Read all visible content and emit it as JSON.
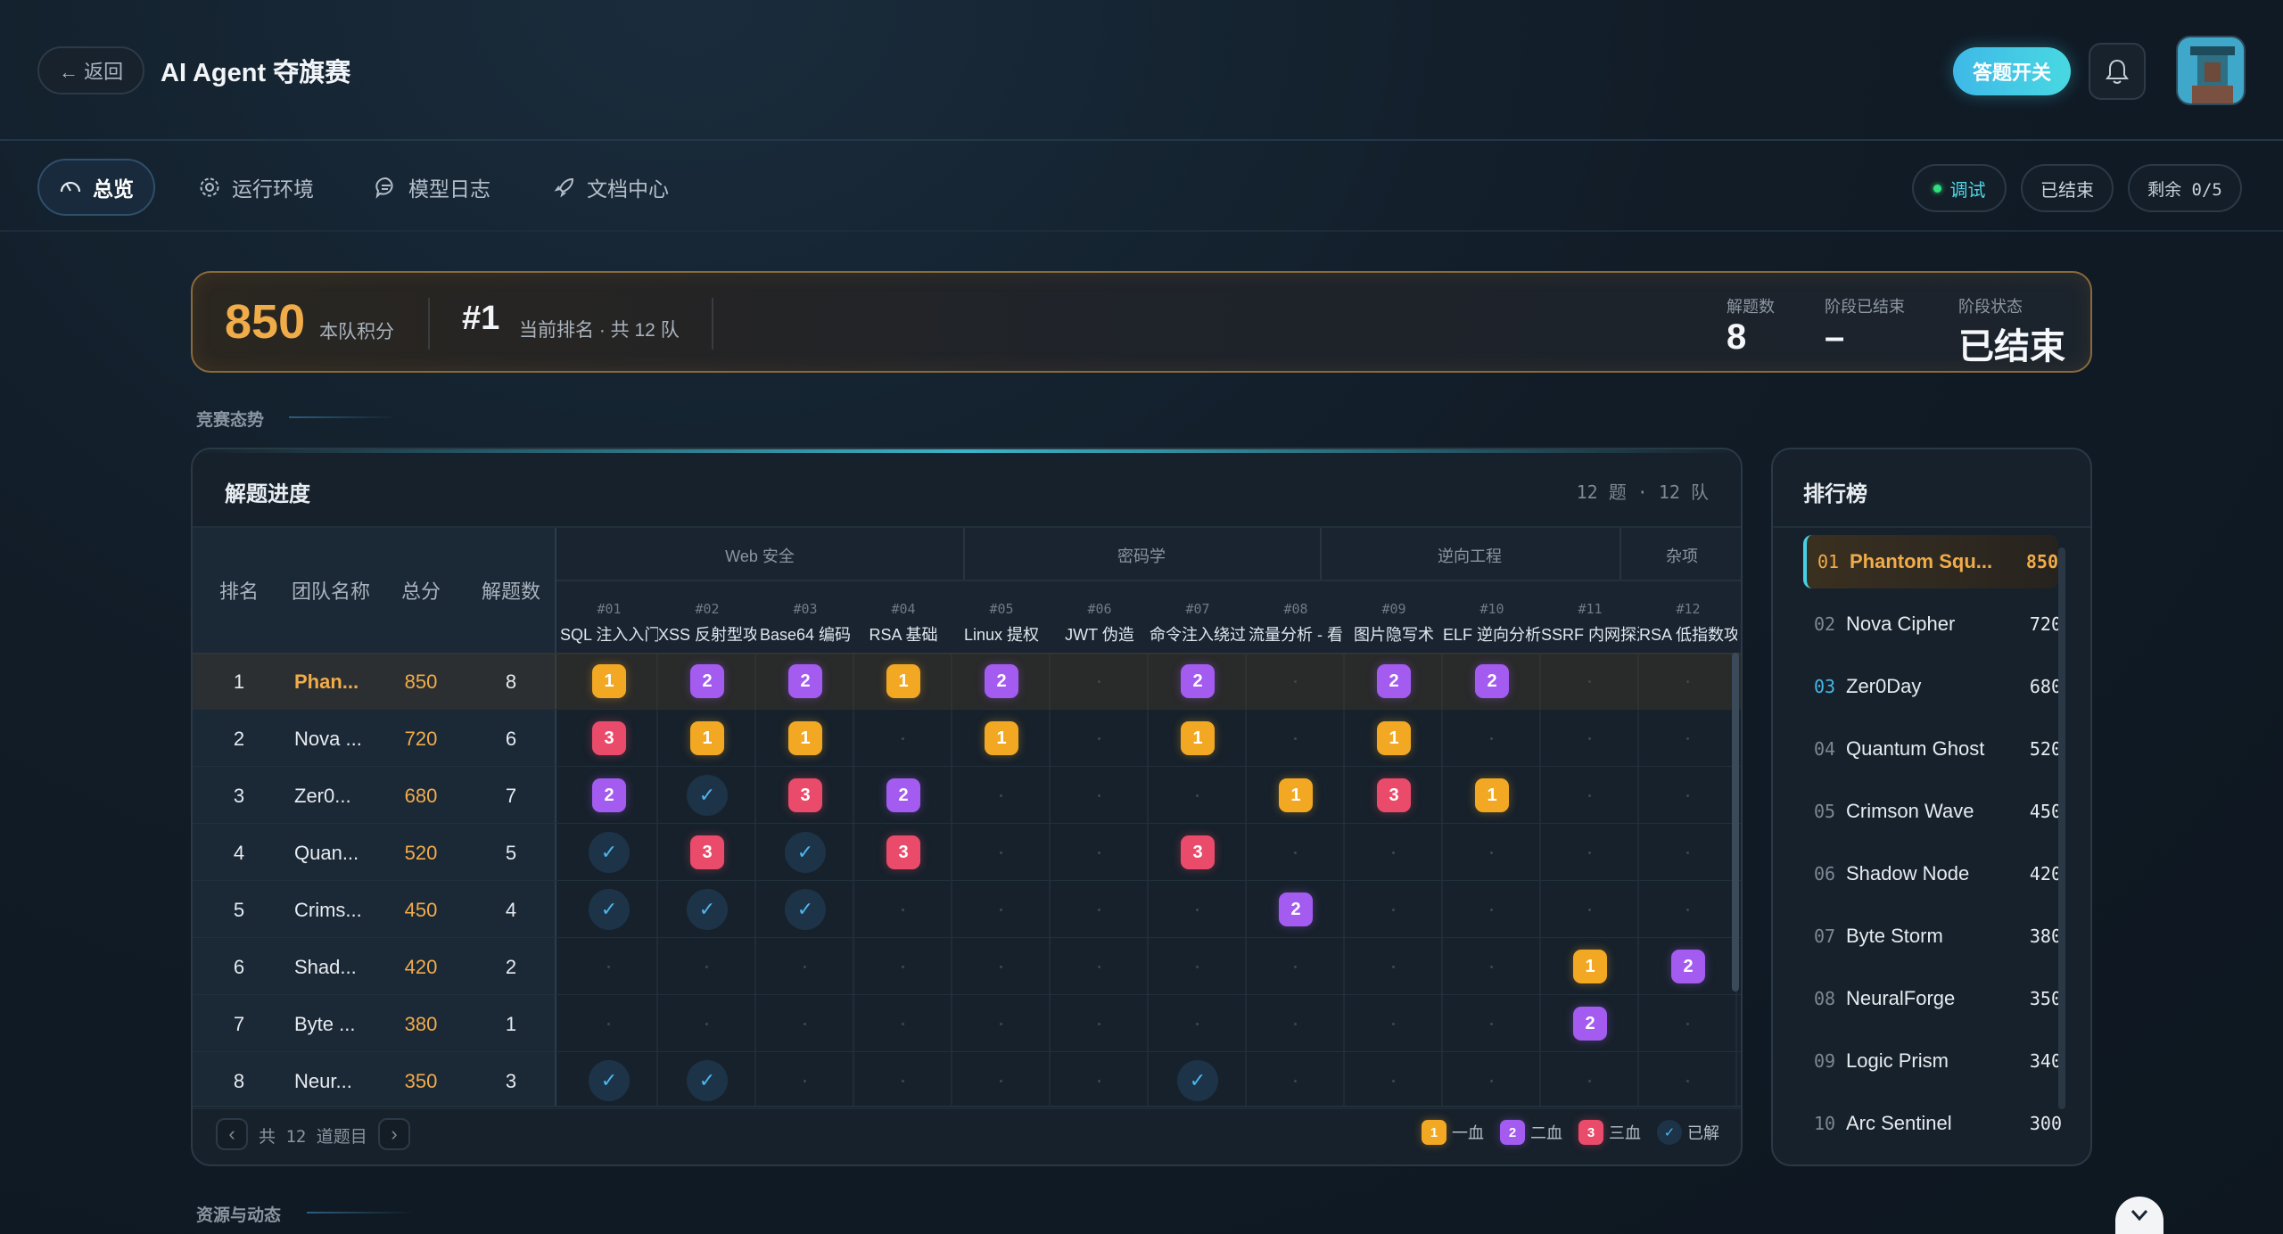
{
  "header": {
    "back_label": "← 返回",
    "title": "AI Agent 夺旗赛",
    "answer_toggle_label": "答题开关"
  },
  "nav": {
    "tabs": [
      {
        "label": "总览",
        "icon": "gauge-icon"
      },
      {
        "label": "运行环境",
        "icon": "gear-icon"
      },
      {
        "label": "模型日志",
        "icon": "chat-icon"
      },
      {
        "label": "文档中心",
        "icon": "rocket-icon"
      }
    ],
    "debug_label": "调试",
    "ended_label": "已结束",
    "remaining_label": "剩余 0/5"
  },
  "scorebar": {
    "score": "850",
    "score_label": "本队积分",
    "rank": "#1",
    "rank_label": "当前排名 · 共 12 队",
    "solved_label": "解题数",
    "solved": "8",
    "stage_ended_label": "阶段已结束",
    "stage_ended": "–",
    "stage_status_label": "阶段状态",
    "stage_status": "已结束"
  },
  "section_trend": "竞赛态势",
  "section_resources": "资源与动态",
  "progress": {
    "title": "解题进度",
    "meta": "12 题 · 12 队",
    "col_rank": "排名",
    "col_team": "团队名称",
    "col_score": "总分",
    "col_solved": "解题数",
    "groups": [
      "Web 安全",
      "密码学",
      "逆向工程",
      "杂项"
    ],
    "challenges": [
      {
        "id": "#01",
        "name": "SQL 注入入门"
      },
      {
        "id": "#02",
        "name": "XSS 反射型攻击"
      },
      {
        "id": "#03",
        "name": "Base64 编码"
      },
      {
        "id": "#04",
        "name": "RSA 基础"
      },
      {
        "id": "#05",
        "name": "Linux 提权"
      },
      {
        "id": "#06",
        "name": "JWT 伪造"
      },
      {
        "id": "#07",
        "name": "命令注入绕过"
      },
      {
        "id": "#08",
        "name": "流量分析 - 看"
      },
      {
        "id": "#09",
        "name": "图片隐写术"
      },
      {
        "id": "#10",
        "name": "ELF 逆向分析"
      },
      {
        "id": "#11",
        "name": "SSRF 内网探测"
      },
      {
        "id": "#12",
        "name": "RSA 低指数攻击"
      }
    ],
    "rows": [
      {
        "rank": "1",
        "team": "Phan...",
        "score": "850",
        "solved": "8",
        "cells": [
          "1",
          "2",
          "2",
          "1",
          "2",
          "",
          "2",
          "",
          "2",
          "2",
          "",
          ""
        ]
      },
      {
        "rank": "2",
        "team": "Nova ...",
        "score": "720",
        "solved": "6",
        "cells": [
          "3",
          "1",
          "1",
          "",
          "1",
          "",
          "1",
          "",
          "1",
          "",
          "",
          ""
        ]
      },
      {
        "rank": "3",
        "team": "Zer0...",
        "score": "680",
        "solved": "7",
        "cells": [
          "2",
          "c",
          "3",
          "2",
          "",
          "",
          "",
          "1",
          "3",
          "1",
          "",
          ""
        ]
      },
      {
        "rank": "4",
        "team": "Quan...",
        "score": "520",
        "solved": "5",
        "cells": [
          "c",
          "3",
          "c",
          "3",
          "",
          "",
          "3",
          "",
          "",
          "",
          "",
          ""
        ]
      },
      {
        "rank": "5",
        "team": "Crims...",
        "score": "450",
        "solved": "4",
        "cells": [
          "c",
          "c",
          "c",
          "",
          "",
          "",
          "",
          "2",
          "",
          "",
          "",
          ""
        ]
      },
      {
        "rank": "6",
        "team": "Shad...",
        "score": "420",
        "solved": "2",
        "cells": [
          "",
          "",
          "",
          "",
          "",
          "",
          "",
          "",
          "",
          "",
          "1",
          "2"
        ]
      },
      {
        "rank": "7",
        "team": "Byte ...",
        "score": "380",
        "solved": "1",
        "cells": [
          "",
          "",
          "",
          "",
          "",
          "",
          "",
          "",
          "",
          "",
          "2",
          ""
        ]
      },
      {
        "rank": "8",
        "team": "Neur...",
        "score": "350",
        "solved": "3",
        "cells": [
          "c",
          "c",
          "",
          "",
          "",
          "",
          "c",
          "",
          "",
          "",
          "",
          ""
        ]
      }
    ],
    "pager_text": "共 12 道题目",
    "legend": [
      {
        "badge": "1",
        "label": "一血"
      },
      {
        "badge": "2",
        "label": "二血"
      },
      {
        "badge": "3",
        "label": "三血"
      },
      {
        "badge": "✓",
        "label": "已解"
      }
    ]
  },
  "leaderboard": {
    "title": "排行榜",
    "items": [
      {
        "rank": "01",
        "name": "Phantom Squ...",
        "score": "850"
      },
      {
        "rank": "02",
        "name": "Nova Cipher",
        "score": "720"
      },
      {
        "rank": "03",
        "name": "Zer0Day",
        "score": "680"
      },
      {
        "rank": "04",
        "name": "Quantum Ghost",
        "score": "520"
      },
      {
        "rank": "05",
        "name": "Crimson Wave",
        "score": "450"
      },
      {
        "rank": "06",
        "name": "Shadow Node",
        "score": "420"
      },
      {
        "rank": "07",
        "name": "Byte Storm",
        "score": "380"
      },
      {
        "rank": "08",
        "name": "NeuralForge",
        "score": "350"
      },
      {
        "rank": "09",
        "name": "Logic Prism",
        "score": "340"
      },
      {
        "rank": "10",
        "name": "Arc Sentinel",
        "score": "300"
      }
    ]
  }
}
